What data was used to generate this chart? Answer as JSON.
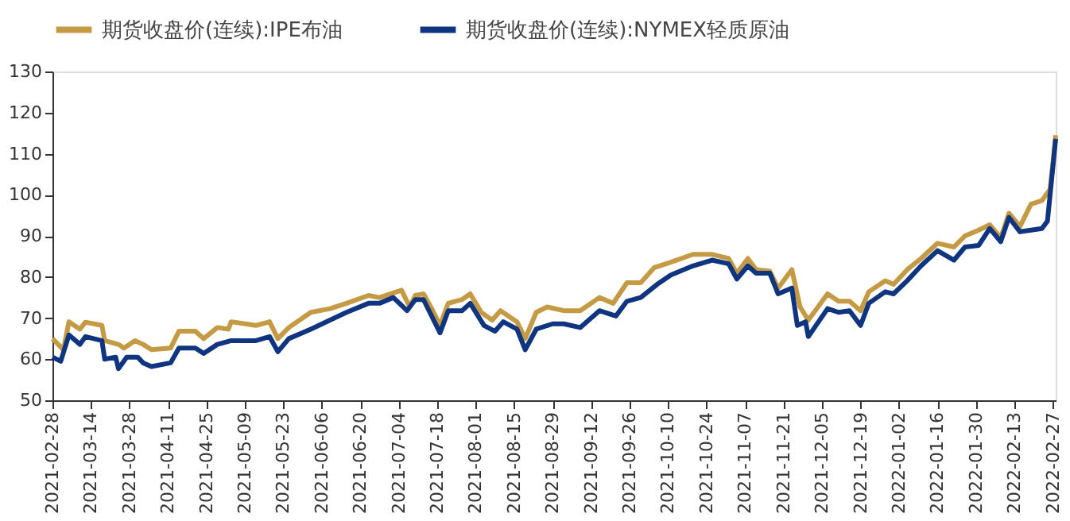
{
  "chart_data": {
    "type": "line",
    "legend": "top",
    "line_style": "solid",
    "marker": "none",
    "grid": false,
    "xlim": [
      "2021-02-28",
      "2022-02-28"
    ],
    "xticks": [
      "2021-02-28",
      "2021-03-14",
      "2021-03-28",
      "2021-04-11",
      "2021-04-25",
      "2021-05-09",
      "2021-05-23",
      "2021-06-06",
      "2021-06-20",
      "2021-07-04",
      "2021-07-18",
      "2021-08-01",
      "2021-08-15",
      "2021-08-29",
      "2021-09-12",
      "2021-09-26",
      "2021-10-10",
      "2021-10-24",
      "2021-11-07",
      "2021-11-21",
      "2021-12-05",
      "2021-12-19",
      "2022-01-02",
      "2022-01-16",
      "2022-01-30",
      "2022-02-13",
      "2022-02-27"
    ],
    "ylim": [
      50,
      130
    ],
    "yticks": [
      50,
      60,
      70,
      80,
      90,
      100,
      110,
      120,
      130
    ],
    "series": [
      {
        "name": "期货收盘价(连续):IPE布油",
        "color": "#c49a45",
        "x": [
          "2021-02-28",
          "2021-03-04",
          "2021-03-06",
          "2021-03-10",
          "2021-03-12",
          "2021-03-18",
          "2021-03-19",
          "2021-03-24",
          "2021-03-26",
          "2021-03-30",
          "2021-04-02",
          "2021-04-05",
          "2021-04-12",
          "2021-04-15",
          "2021-04-21",
          "2021-04-24",
          "2021-04-29",
          "2021-05-03",
          "2021-05-04",
          "2021-05-13",
          "2021-05-18",
          "2021-05-21",
          "2021-05-25",
          "2021-06-02",
          "2021-06-09",
          "2021-06-15",
          "2021-06-23",
          "2021-06-27",
          "2021-07-05",
          "2021-07-08",
          "2021-07-10",
          "2021-07-13",
          "2021-07-16",
          "2021-07-19",
          "2021-07-22",
          "2021-07-27",
          "2021-07-30",
          "2021-08-03",
          "2021-08-07",
          "2021-08-10",
          "2021-08-16",
          "2021-08-19",
          "2021-08-23",
          "2021-08-27",
          "2021-09-02",
          "2021-09-08",
          "2021-09-15",
          "2021-09-20",
          "2021-09-25",
          "2021-09-30",
          "2021-10-05",
          "2021-10-11",
          "2021-10-19",
          "2021-10-26",
          "2021-11-01",
          "2021-11-04",
          "2021-11-08",
          "2021-11-11",
          "2021-11-16",
          "2021-11-19",
          "2021-11-24",
          "2021-11-27",
          "2021-11-30",
          "2021-12-07",
          "2021-12-11",
          "2021-12-15",
          "2021-12-19",
          "2021-12-22",
          "2021-12-28",
          "2021-12-31",
          "2022-01-05",
          "2022-01-10",
          "2022-01-16",
          "2022-01-22",
          "2022-01-26",
          "2022-01-31",
          "2022-02-04",
          "2022-02-08",
          "2022-02-11",
          "2022-02-15",
          "2022-02-19",
          "2022-02-23",
          "2022-02-26",
          "2022-02-28"
        ],
        "values": [
          65.0,
          62.3,
          69.1,
          67.3,
          69.0,
          68.2,
          64.5,
          63.6,
          62.7,
          64.5,
          63.6,
          62.3,
          62.7,
          66.8,
          66.8,
          65.0,
          67.7,
          67.3,
          69.1,
          68.2,
          69.1,
          65.0,
          67.7,
          71.4,
          72.3,
          73.6,
          75.5,
          75.0,
          76.8,
          72.7,
          75.5,
          75.9,
          72.3,
          68.2,
          73.6,
          74.5,
          75.9,
          71.4,
          69.5,
          71.8,
          69.1,
          65.0,
          71.4,
          72.7,
          71.8,
          71.8,
          75.0,
          73.6,
          78.6,
          78.6,
          82.3,
          83.6,
          85.5,
          85.5,
          84.5,
          80.9,
          84.5,
          81.8,
          81.4,
          77.3,
          81.8,
          72.7,
          69.5,
          75.9,
          74.1,
          74.1,
          71.8,
          76.4,
          79.1,
          78.2,
          81.8,
          84.5,
          88.2,
          87.3,
          90.0,
          91.4,
          92.7,
          89.5,
          95.5,
          92.3,
          97.7,
          98.6,
          101.4,
          114.5
        ]
      },
      {
        "name": "期货收盘价(连续):NYMEX轻质原油",
        "color": "#0f3580",
        "x": [
          "2021-02-28",
          "2021-03-03",
          "2021-03-06",
          "2021-03-10",
          "2021-03-12",
          "2021-03-18",
          "2021-03-19",
          "2021-03-23",
          "2021-03-24",
          "2021-03-27",
          "2021-03-31",
          "2021-04-02",
          "2021-04-05",
          "2021-04-12",
          "2021-04-15",
          "2021-04-21",
          "2021-04-24",
          "2021-04-29",
          "2021-05-04",
          "2021-05-13",
          "2021-05-18",
          "2021-05-21",
          "2021-05-25",
          "2021-06-02",
          "2021-06-09",
          "2021-06-15",
          "2021-06-23",
          "2021-06-27",
          "2021-07-02",
          "2021-07-07",
          "2021-07-10",
          "2021-07-13",
          "2021-07-19",
          "2021-07-22",
          "2021-07-27",
          "2021-07-30",
          "2021-08-04",
          "2021-08-08",
          "2021-08-11",
          "2021-08-16",
          "2021-08-19",
          "2021-08-23",
          "2021-08-29",
          "2021-09-02",
          "2021-09-08",
          "2021-09-15",
          "2021-09-21",
          "2021-09-25",
          "2021-09-30",
          "2021-10-06",
          "2021-10-11",
          "2021-10-19",
          "2021-10-26",
          "2021-11-01",
          "2021-11-04",
          "2021-11-08",
          "2021-11-11",
          "2021-11-16",
          "2021-11-19",
          "2021-11-24",
          "2021-11-26",
          "2021-11-29",
          "2021-11-30",
          "2021-12-07",
          "2021-12-11",
          "2021-12-15",
          "2021-12-19",
          "2021-12-22",
          "2021-12-28",
          "2021-12-31",
          "2022-01-05",
          "2022-01-10",
          "2022-01-16",
          "2022-01-22",
          "2022-01-26",
          "2022-01-31",
          "2022-02-04",
          "2022-02-08",
          "2022-02-11",
          "2022-02-15",
          "2022-02-23",
          "2022-02-25",
          "2022-02-28"
        ],
        "values": [
          60.5,
          59.5,
          65.9,
          63.6,
          65.5,
          64.5,
          60.0,
          60.5,
          57.7,
          60.5,
          60.5,
          59.1,
          58.2,
          59.1,
          62.7,
          62.7,
          61.4,
          63.6,
          64.5,
          64.5,
          65.5,
          61.8,
          65.0,
          67.3,
          69.5,
          71.4,
          73.6,
          73.6,
          75.0,
          71.8,
          74.5,
          74.5,
          66.4,
          71.8,
          71.8,
          73.6,
          68.2,
          66.8,
          69.1,
          67.3,
          62.3,
          67.3,
          68.6,
          68.6,
          67.7,
          71.8,
          70.5,
          74.1,
          75.0,
          78.2,
          80.5,
          82.7,
          84.1,
          83.2,
          79.5,
          82.7,
          80.9,
          80.9,
          75.9,
          77.3,
          68.2,
          69.1,
          65.5,
          72.3,
          71.4,
          71.8,
          68.2,
          73.6,
          76.4,
          75.9,
          79.1,
          82.7,
          86.4,
          84.1,
          87.3,
          87.7,
          91.8,
          88.6,
          94.5,
          91.0,
          91.8,
          93.6,
          113.6
        ]
      }
    ]
  }
}
